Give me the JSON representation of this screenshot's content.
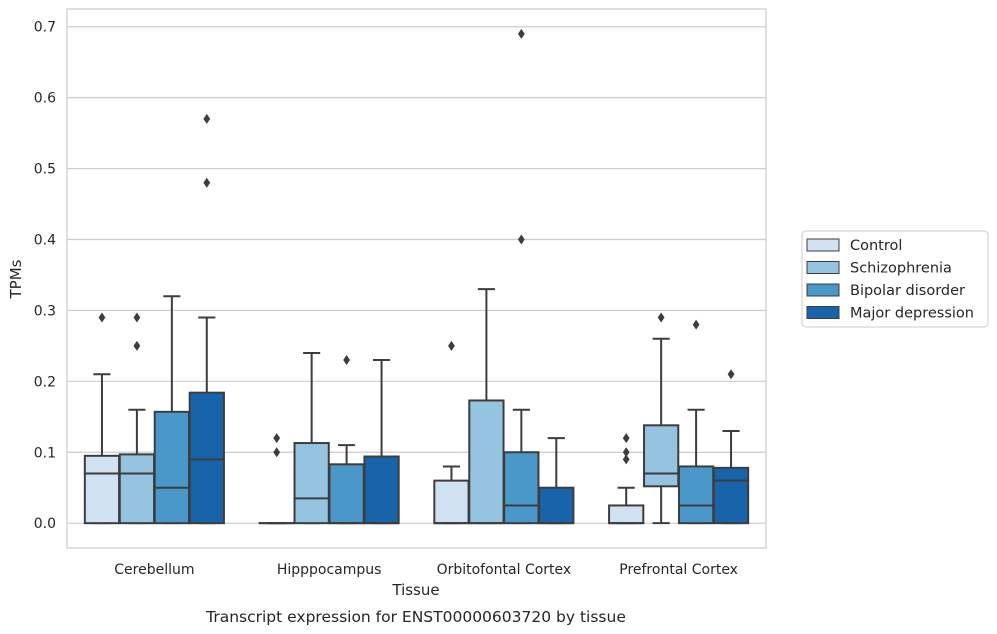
{
  "chart_data": {
    "type": "box",
    "xlabel": "Tissue",
    "ylabel": "TPMs",
    "caption": "Transcript expression for ENST00000603720 by tissue",
    "ylim": [
      -0.035,
      0.725
    ],
    "yticks": [
      "0.0",
      "0.1",
      "0.2",
      "0.3",
      "0.4",
      "0.5",
      "0.6",
      "0.7"
    ],
    "grid": "horizontal",
    "legend_position": "right",
    "categories": [
      "Cerebellum",
      "Hipppocampus",
      "Orbitofontal Cortex",
      "Prefrontal Cortex"
    ],
    "series": [
      {
        "name": "Control",
        "color": "#d0e1f2",
        "boxes": [
          {
            "q1": 0.0,
            "median": 0.07,
            "q3": 0.095,
            "whisker_low": 0.0,
            "whisker_high": 0.21,
            "outliers": [
              0.29
            ]
          },
          {
            "q1": 0.0,
            "median": 0.0,
            "q3": 0.0,
            "whisker_low": 0.0,
            "whisker_high": 0.0,
            "outliers": [
              0.1,
              0.12
            ]
          },
          {
            "q1": 0.0,
            "median": 0.0,
            "q3": 0.06,
            "whisker_low": 0.0,
            "whisker_high": 0.08,
            "outliers": [
              0.25
            ]
          },
          {
            "q1": 0.0,
            "median": 0.0,
            "q3": 0.025,
            "whisker_low": 0.0,
            "whisker_high": 0.05,
            "outliers": [
              0.09,
              0.1,
              0.12
            ]
          }
        ]
      },
      {
        "name": "Schizophrenia",
        "color": "#94c4df",
        "boxes": [
          {
            "q1": 0.0,
            "median": 0.07,
            "q3": 0.097,
            "whisker_low": 0.0,
            "whisker_high": 0.16,
            "outliers": [
              0.25,
              0.29
            ]
          },
          {
            "q1": 0.0,
            "median": 0.035,
            "q3": 0.113,
            "whisker_low": 0.0,
            "whisker_high": 0.24,
            "outliers": []
          },
          {
            "q1": 0.0,
            "median": 0.0,
            "q3": 0.173,
            "whisker_low": 0.0,
            "whisker_high": 0.33,
            "outliers": []
          },
          {
            "q1": 0.052,
            "median": 0.07,
            "q3": 0.138,
            "whisker_low": 0.0,
            "whisker_high": 0.26,
            "outliers": [
              0.29
            ]
          }
        ]
      },
      {
        "name": "Bipolar disorder",
        "color": "#4a98c9",
        "boxes": [
          {
            "q1": 0.0,
            "median": 0.05,
            "q3": 0.157,
            "whisker_low": 0.0,
            "whisker_high": 0.32,
            "outliers": []
          },
          {
            "q1": 0.0,
            "median": 0.0,
            "q3": 0.083,
            "whisker_low": 0.0,
            "whisker_high": 0.11,
            "outliers": [
              0.23
            ]
          },
          {
            "q1": 0.0,
            "median": 0.025,
            "q3": 0.1,
            "whisker_low": 0.0,
            "whisker_high": 0.16,
            "outliers": [
              0.4,
              0.69
            ]
          },
          {
            "q1": 0.0,
            "median": 0.025,
            "q3": 0.08,
            "whisker_low": 0.0,
            "whisker_high": 0.16,
            "outliers": [
              0.28
            ]
          }
        ]
      },
      {
        "name": "Major depression",
        "color": "#1764ab",
        "boxes": [
          {
            "q1": 0.0,
            "median": 0.09,
            "q3": 0.184,
            "whisker_low": 0.0,
            "whisker_high": 0.29,
            "outliers": [
              0.48,
              0.57
            ]
          },
          {
            "q1": 0.0,
            "median": 0.0,
            "q3": 0.094,
            "whisker_low": 0.0,
            "whisker_high": 0.23,
            "outliers": []
          },
          {
            "q1": 0.0,
            "median": 0.0,
            "q3": 0.05,
            "whisker_low": 0.0,
            "whisker_high": 0.12,
            "outliers": []
          },
          {
            "q1": 0.0,
            "median": 0.06,
            "q3": 0.078,
            "whisker_low": 0.0,
            "whisker_high": 0.13,
            "outliers": [
              0.21
            ]
          }
        ]
      }
    ]
  }
}
